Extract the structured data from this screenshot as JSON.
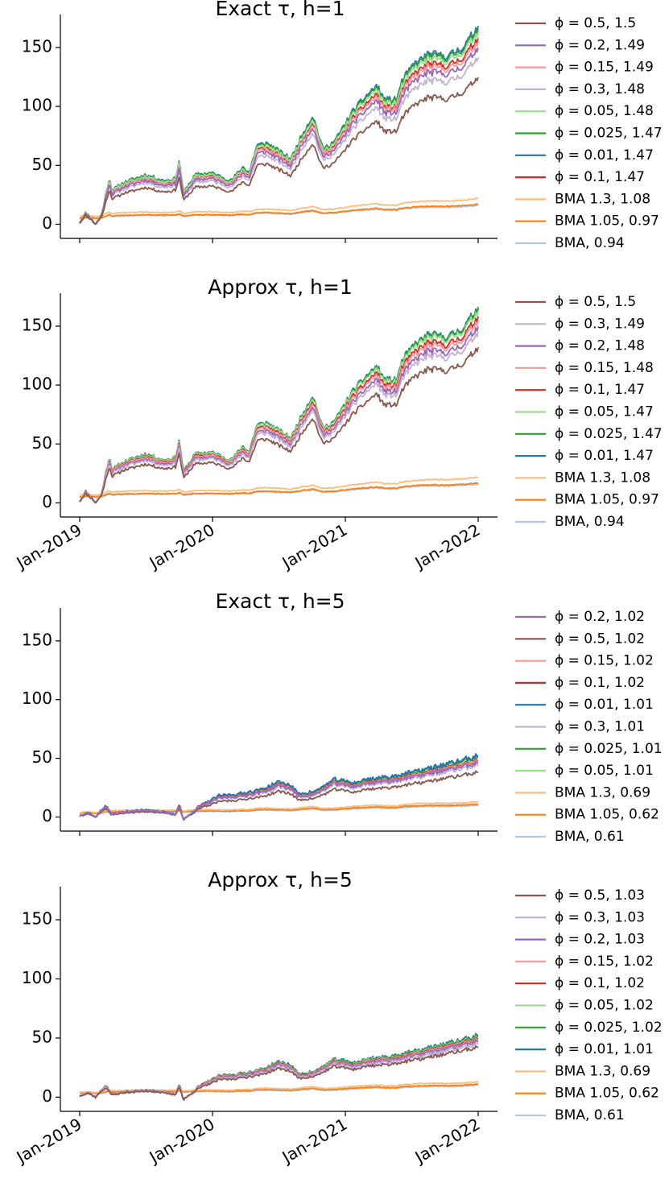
{
  "chart_data": [
    {
      "type": "line",
      "title": "Exact τ,  h = 1",
      "title_text": "Exact τ,  h=1",
      "x_ticks": [
        "Jan-2019",
        "Jan-2020",
        "Jan-2021",
        "Jan-2022"
      ],
      "show_x_tick_labels": false,
      "ylim": [
        -12,
        178
      ],
      "y_ticks": [
        "0",
        "50",
        "100",
        "150"
      ],
      "series": [
        {
          "name": "ϕ = 0.5, 1.5",
          "color": "#8c564b",
          "final": 125
        },
        {
          "name": "ϕ = 0.2, 1.49",
          "color": "#9467bd",
          "final": 150
        },
        {
          "name": "ϕ = 0.15, 1.49",
          "color": "#ff9896",
          "final": 155
        },
        {
          "name": "ϕ = 0.3, 1.48",
          "color": "#c5b0d5",
          "final": 142
        },
        {
          "name": "ϕ = 0.05, 1.48",
          "color": "#98df8a",
          "final": 163
        },
        {
          "name": "ϕ = 0.025, 1.47",
          "color": "#2ca02c",
          "final": 166
        },
        {
          "name": "ϕ = 0.01, 1.47",
          "color": "#1f77b4",
          "final": 168
        },
        {
          "name": "ϕ = 0.1, 1.47",
          "color": "#d62728",
          "final": 158
        },
        {
          "name": "BMA 1.3, 1.08",
          "color": "#ffbb78",
          "final": 22
        },
        {
          "name": "BMA 1.05, 0.97",
          "color": "#ff7f0e",
          "final": 17
        },
        {
          "name": "BMA, 0.94",
          "color": "#aec7e8",
          "final": 16
        }
      ]
    },
    {
      "type": "line",
      "title_text": "Approx τ,  h=1",
      "x_ticks": [
        "Jan-2019",
        "Jan-2020",
        "Jan-2021",
        "Jan-2022"
      ],
      "show_x_tick_labels": true,
      "ylim": [
        -12,
        178
      ],
      "y_ticks": [
        "0",
        "50",
        "100",
        "150"
      ],
      "series": [
        {
          "name": "ϕ = 0.5, 1.5",
          "color": "#8c564b",
          "final": 132
        },
        {
          "name": "ϕ = 0.3, 1.49",
          "color": "#c5b0d5",
          "final": 145
        },
        {
          "name": "ϕ = 0.2, 1.48",
          "color": "#9467bd",
          "final": 150
        },
        {
          "name": "ϕ = 0.15, 1.48",
          "color": "#ff9896",
          "final": 155
        },
        {
          "name": "ϕ = 0.1, 1.47",
          "color": "#d62728",
          "final": 158
        },
        {
          "name": "ϕ = 0.05, 1.47",
          "color": "#98df8a",
          "final": 163
        },
        {
          "name": "ϕ = 0.025, 1.47",
          "color": "#2ca02c",
          "final": 165
        },
        {
          "name": "ϕ = 0.01, 1.47",
          "color": "#1f77b4",
          "final": 166
        },
        {
          "name": "BMA 1.3, 1.08",
          "color": "#ffbb78",
          "final": 22
        },
        {
          "name": "BMA 1.05, 0.97",
          "color": "#ff7f0e",
          "final": 17
        },
        {
          "name": "BMA, 0.94",
          "color": "#aec7e8",
          "final": 16
        }
      ]
    },
    {
      "type": "line",
      "title_text": "Exact τ,  h=5",
      "x_ticks": [
        "Jan-2019",
        "Jan-2020",
        "Jan-2021",
        "Jan-2022"
      ],
      "show_x_tick_labels": false,
      "ylim": [
        -12,
        178
      ],
      "y_ticks": [
        "0",
        "50",
        "100",
        "150"
      ],
      "series": [
        {
          "name": "ϕ = 0.2, 1.02",
          "color": "#9467bd",
          "final": 46
        },
        {
          "name": "ϕ = 0.5, 1.02",
          "color": "#8c564b",
          "final": 38
        },
        {
          "name": "ϕ = 0.15, 1.02",
          "color": "#ff9896",
          "final": 47
        },
        {
          "name": "ϕ = 0.1, 1.02",
          "color": "#d62728",
          "final": 48
        },
        {
          "name": "ϕ = 0.01, 1.01",
          "color": "#1f77b4",
          "final": 52
        },
        {
          "name": "ϕ = 0.3, 1.01",
          "color": "#c5b0d5",
          "final": 44
        },
        {
          "name": "ϕ = 0.025, 1.01",
          "color": "#2ca02c",
          "final": 51
        },
        {
          "name": "ϕ = 0.05, 1.01",
          "color": "#98df8a",
          "final": 50
        },
        {
          "name": "BMA 1.3, 0.69",
          "color": "#ffbb78",
          "final": 13
        },
        {
          "name": "BMA 1.05, 0.62",
          "color": "#ff7f0e",
          "final": 11
        },
        {
          "name": "BMA, 0.61",
          "color": "#aec7e8",
          "final": 10
        }
      ]
    },
    {
      "type": "line",
      "title_text": "Approx τ,  h=5",
      "x_ticks": [
        "Jan-2019",
        "Jan-2020",
        "Jan-2021",
        "Jan-2022"
      ],
      "show_x_tick_labels": true,
      "ylim": [
        -12,
        178
      ],
      "y_ticks": [
        "0",
        "50",
        "100",
        "150"
      ],
      "series": [
        {
          "name": "ϕ = 0.5, 1.03",
          "color": "#8c564b",
          "final": 42
        },
        {
          "name": "ϕ = 0.3, 1.03",
          "color": "#c5b0d5",
          "final": 45
        },
        {
          "name": "ϕ = 0.2, 1.03",
          "color": "#9467bd",
          "final": 47
        },
        {
          "name": "ϕ = 0.15, 1.02",
          "color": "#ff9896",
          "final": 48
        },
        {
          "name": "ϕ = 0.1, 1.02",
          "color": "#d62728",
          "final": 49
        },
        {
          "name": "ϕ = 0.05, 1.02",
          "color": "#98df8a",
          "final": 50
        },
        {
          "name": "ϕ = 0.025, 1.02",
          "color": "#2ca02c",
          "final": 51
        },
        {
          "name": "ϕ = 0.01, 1.01",
          "color": "#1f77b4",
          "final": 52
        },
        {
          "name": "BMA 1.3, 0.69",
          "color": "#ffbb78",
          "final": 13
        },
        {
          "name": "BMA 1.05, 0.62",
          "color": "#ff7f0e",
          "final": 11
        },
        {
          "name": "BMA, 0.61",
          "color": "#aec7e8",
          "final": 10
        }
      ]
    }
  ]
}
